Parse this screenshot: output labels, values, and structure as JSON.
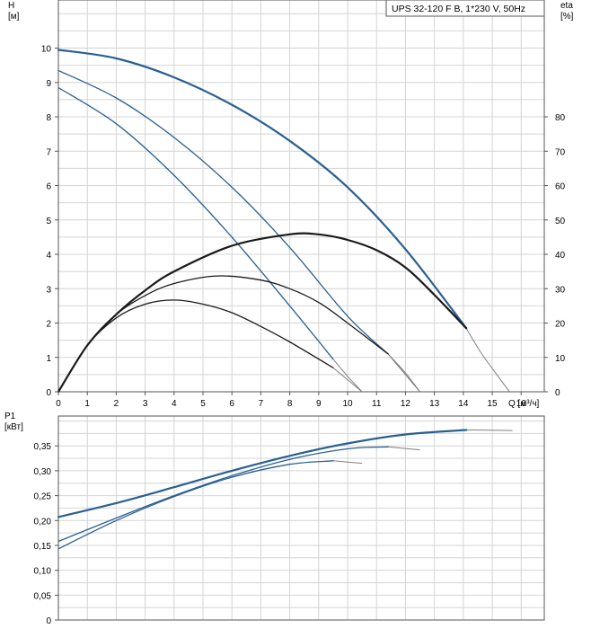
{
  "chart_data": [
    {
      "type": "line",
      "legend": "UPS 32-120 F B, 1*230 V, 50Hz",
      "xlabel": "Q [м³/ч]",
      "ylabel": "H\n[м]",
      "y2label": "eta\n[%]",
      "xlim": [
        0,
        16.8
      ],
      "ylim": [
        0,
        11.4
      ],
      "y2lim": [
        0,
        114
      ],
      "xticks": [
        "0",
        "1",
        "2",
        "3",
        "4",
        "5",
        "6",
        "7",
        "8",
        "9",
        "10",
        "11",
        "12",
        "13",
        "14",
        "15",
        "16"
      ],
      "yticks": [
        "0",
        "1",
        "2",
        "3",
        "4",
        "5",
        "6",
        "7",
        "8",
        "9",
        "10"
      ],
      "y2ticks": [
        "0",
        "10",
        "20",
        "30",
        "40",
        "50",
        "60",
        "70",
        "80"
      ],
      "grid": true,
      "series": [
        {
          "kind": "head",
          "axis": "left",
          "x": [
            0,
            2,
            4,
            6,
            8,
            10,
            12,
            14.1
          ],
          "y": [
            9.95,
            9.7,
            9.15,
            8.35,
            7.3,
            5.95,
            4.15,
            1.85
          ],
          "ext_x": [
            14.1,
            14.6,
            15.2,
            15.6
          ],
          "ext_y": [
            1.85,
            1.15,
            0.45,
            0
          ]
        },
        {
          "kind": "head",
          "axis": "left",
          "x": [
            0,
            2,
            4,
            6,
            8,
            10,
            11.4
          ],
          "y": [
            9.35,
            8.55,
            7.4,
            5.95,
            4.2,
            2.2,
            1.1
          ],
          "ext_x": [
            11.4,
            12,
            12.5
          ],
          "ext_y": [
            1.1,
            0.5,
            0
          ]
        },
        {
          "kind": "head",
          "axis": "left",
          "x": [
            0,
            2,
            4,
            6,
            8,
            9.5
          ],
          "y": [
            8.85,
            7.8,
            6.3,
            4.5,
            2.5,
            0.95
          ],
          "ext_x": [
            9.5,
            10,
            10.5
          ],
          "ext_y": [
            0.95,
            0.45,
            0
          ]
        },
        {
          "kind": "eta",
          "axis": "right",
          "x": [
            0,
            1,
            2,
            3,
            4,
            6,
            8,
            9,
            10,
            11,
            12,
            13,
            14.1
          ],
          "y": [
            0,
            13.5,
            22.5,
            29.5,
            35,
            42.5,
            45.8,
            45.8,
            44.2,
            41.2,
            36.2,
            28.2,
            18.5
          ]
        },
        {
          "kind": "eta",
          "axis": "right",
          "x": [
            0,
            1,
            2,
            3,
            4,
            5.5,
            7,
            8,
            9,
            10,
            11.4
          ],
          "y": [
            0,
            13.5,
            22.5,
            28,
            31.5,
            33.7,
            32.5,
            30,
            26,
            20,
            11
          ],
          "ext_x": [
            11.4,
            12,
            12.5
          ],
          "ext_y": [
            11,
            5.5,
            0
          ]
        },
        {
          "kind": "eta",
          "axis": "right",
          "x": [
            0,
            1,
            2,
            3,
            4,
            5,
            6,
            7,
            8,
            9.5
          ],
          "y": [
            0,
            13.5,
            21.5,
            25.5,
            26.7,
            25.5,
            23,
            19,
            14.5,
            7
          ],
          "ext_x": [
            9.5,
            10,
            10.5
          ],
          "ext_y": [
            7,
            3.5,
            0
          ]
        }
      ]
    },
    {
      "type": "line",
      "ylabel": "P1\n[кВт]",
      "xlim": [
        0,
        16.8
      ],
      "ylim": [
        0,
        0.41
      ],
      "yticks": [
        "0",
        "0,05",
        "0,10",
        "0,15",
        "0,20",
        "0,25",
        "0,30",
        "0,35"
      ],
      "grid": true,
      "series": [
        {
          "kind": "power",
          "axis": "left",
          "x": [
            0,
            2,
            4,
            6,
            8,
            10,
            12,
            14.1
          ],
          "y": [
            0.207,
            0.235,
            0.267,
            0.3,
            0.33,
            0.355,
            0.373,
            0.382
          ],
          "ext_x": [
            14.1,
            15.7
          ],
          "ext_y": [
            0.382,
            0.381
          ]
        },
        {
          "kind": "power",
          "axis": "left",
          "x": [
            0,
            2,
            4,
            6,
            8,
            10,
            11.4
          ],
          "y": [
            0.158,
            0.205,
            0.25,
            0.29,
            0.323,
            0.344,
            0.348
          ],
          "ext_x": [
            11.4,
            12.5
          ],
          "ext_y": [
            0.348,
            0.342
          ]
        },
        {
          "kind": "power",
          "axis": "left",
          "x": [
            0,
            2,
            4,
            6,
            8,
            9.5
          ],
          "y": [
            0.143,
            0.2,
            0.248,
            0.287,
            0.313,
            0.32
          ],
          "ext_x": [
            9.5,
            10.5
          ],
          "ext_y": [
            0.32,
            0.315
          ]
        }
      ]
    }
  ],
  "colors": {
    "head": "#2a5f92",
    "eta": "#1a1a1a",
    "power": "#2a5f92",
    "ext": "#7f7f7f",
    "grid": "#d4d4d4"
  }
}
